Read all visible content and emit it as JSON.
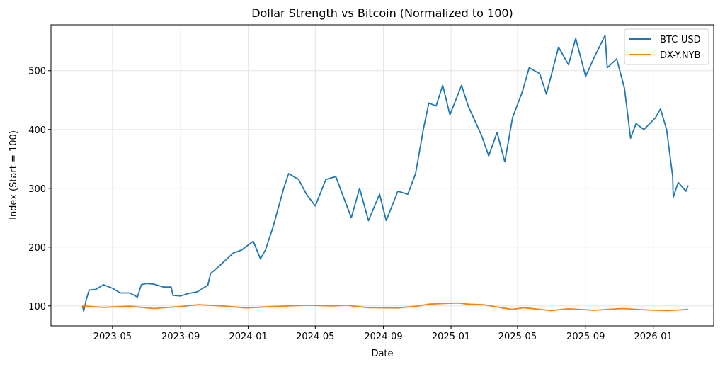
{
  "chart_data": {
    "type": "line",
    "title": "Dollar Strength vs Bitcoin (Normalized to 100)",
    "xlabel": "Date",
    "ylabel": "Index (Start = 100)",
    "xlim": [
      "2023-01-10",
      "2026-04-20"
    ],
    "ylim": [
      66,
      578
    ],
    "grid": true,
    "legend": "top-right",
    "x_ticks": [
      "2023-05",
      "2023-09",
      "2024-01",
      "2024-05",
      "2024-09",
      "2025-01",
      "2025-05",
      "2025-09",
      "2026-01"
    ],
    "y_ticks": [
      100,
      200,
      300,
      400,
      500
    ],
    "series": [
      {
        "name": "BTC-USD",
        "color": "#1f77b4",
        "points": [
          [
            "2023-03-08",
            100
          ],
          [
            "2023-03-10",
            91
          ],
          [
            "2023-03-15",
            112
          ],
          [
            "2023-03-20",
            127
          ],
          [
            "2023-04-01",
            128
          ],
          [
            "2023-04-15",
            136
          ],
          [
            "2023-05-01",
            130
          ],
          [
            "2023-05-15",
            122
          ],
          [
            "2023-06-01",
            122
          ],
          [
            "2023-06-15",
            115
          ],
          [
            "2023-06-22",
            136
          ],
          [
            "2023-07-01",
            138
          ],
          [
            "2023-07-15",
            137
          ],
          [
            "2023-08-01",
            132
          ],
          [
            "2023-08-15",
            132
          ],
          [
            "2023-08-18",
            118
          ],
          [
            "2023-09-01",
            117
          ],
          [
            "2023-09-15",
            121
          ],
          [
            "2023-10-01",
            124
          ],
          [
            "2023-10-20",
            135
          ],
          [
            "2023-10-25",
            155
          ],
          [
            "2023-11-10",
            168
          ],
          [
            "2023-12-05",
            190
          ],
          [
            "2023-12-20",
            195
          ],
          [
            "2024-01-10",
            210
          ],
          [
            "2024-01-23",
            180
          ],
          [
            "2024-02-01",
            195
          ],
          [
            "2024-02-15",
            235
          ],
          [
            "2024-03-05",
            300
          ],
          [
            "2024-03-14",
            325
          ],
          [
            "2024-04-01",
            315
          ],
          [
            "2024-04-15",
            290
          ],
          [
            "2024-05-01",
            270
          ],
          [
            "2024-05-20",
            315
          ],
          [
            "2024-06-07",
            320
          ],
          [
            "2024-06-25",
            275
          ],
          [
            "2024-07-05",
            250
          ],
          [
            "2024-07-20",
            300
          ],
          [
            "2024-08-05",
            245
          ],
          [
            "2024-08-25",
            290
          ],
          [
            "2024-09-06",
            245
          ],
          [
            "2024-09-27",
            295
          ],
          [
            "2024-10-15",
            290
          ],
          [
            "2024-10-29",
            325
          ],
          [
            "2024-11-12",
            400
          ],
          [
            "2024-11-22",
            445
          ],
          [
            "2024-12-05",
            440
          ],
          [
            "2024-12-17",
            475
          ],
          [
            "2024-12-30",
            425
          ],
          [
            "2025-01-20",
            475
          ],
          [
            "2025-02-01",
            440
          ],
          [
            "2025-02-25",
            390
          ],
          [
            "2025-03-10",
            355
          ],
          [
            "2025-03-25",
            395
          ],
          [
            "2025-04-08",
            345
          ],
          [
            "2025-04-22",
            420
          ],
          [
            "2025-05-10",
            465
          ],
          [
            "2025-05-22",
            505
          ],
          [
            "2025-06-10",
            495
          ],
          [
            "2025-06-22",
            460
          ],
          [
            "2025-07-14",
            540
          ],
          [
            "2025-08-01",
            510
          ],
          [
            "2025-08-14",
            555
          ],
          [
            "2025-09-01",
            490
          ],
          [
            "2025-09-15",
            520
          ],
          [
            "2025-10-06",
            560
          ],
          [
            "2025-10-10",
            505
          ],
          [
            "2025-10-27",
            520
          ],
          [
            "2025-11-10",
            470
          ],
          [
            "2025-11-21",
            385
          ],
          [
            "2025-12-01",
            410
          ],
          [
            "2025-12-15",
            400
          ],
          [
            "2026-01-05",
            420
          ],
          [
            "2026-01-14",
            435
          ],
          [
            "2026-01-25",
            400
          ],
          [
            "2026-02-05",
            320
          ],
          [
            "2026-02-06",
            285
          ],
          [
            "2026-02-15",
            310
          ],
          [
            "2026-03-01",
            295
          ],
          [
            "2026-03-05",
            305
          ]
        ]
      },
      {
        "name": "DX-Y.NYB",
        "color": "#ff7f0e",
        "points": [
          [
            "2023-03-08",
            100
          ],
          [
            "2023-04-15",
            97.5
          ],
          [
            "2023-06-01",
            99.5
          ],
          [
            "2023-07-15",
            95.5
          ],
          [
            "2023-09-01",
            99
          ],
          [
            "2023-10-03",
            102
          ],
          [
            "2023-11-15",
            100
          ],
          [
            "2023-12-28",
            96.5
          ],
          [
            "2024-02-15",
            99
          ],
          [
            "2024-04-16",
            101
          ],
          [
            "2024-06-01",
            100
          ],
          [
            "2024-06-26",
            101
          ],
          [
            "2024-08-05",
            97
          ],
          [
            "2024-09-27",
            96.5
          ],
          [
            "2024-10-31",
            99.5
          ],
          [
            "2024-11-22",
            103
          ],
          [
            "2025-01-13",
            105
          ],
          [
            "2025-02-01",
            103
          ],
          [
            "2025-03-01",
            102
          ],
          [
            "2025-03-20",
            99
          ],
          [
            "2025-04-21",
            94
          ],
          [
            "2025-05-12",
            97
          ],
          [
            "2025-06-30",
            92
          ],
          [
            "2025-08-01",
            95
          ],
          [
            "2025-09-17",
            92.5
          ],
          [
            "2025-11-05",
            95.5
          ],
          [
            "2025-12-24",
            93
          ],
          [
            "2026-01-27",
            92
          ],
          [
            "2026-02-15",
            93
          ],
          [
            "2026-03-05",
            94
          ]
        ]
      }
    ]
  }
}
